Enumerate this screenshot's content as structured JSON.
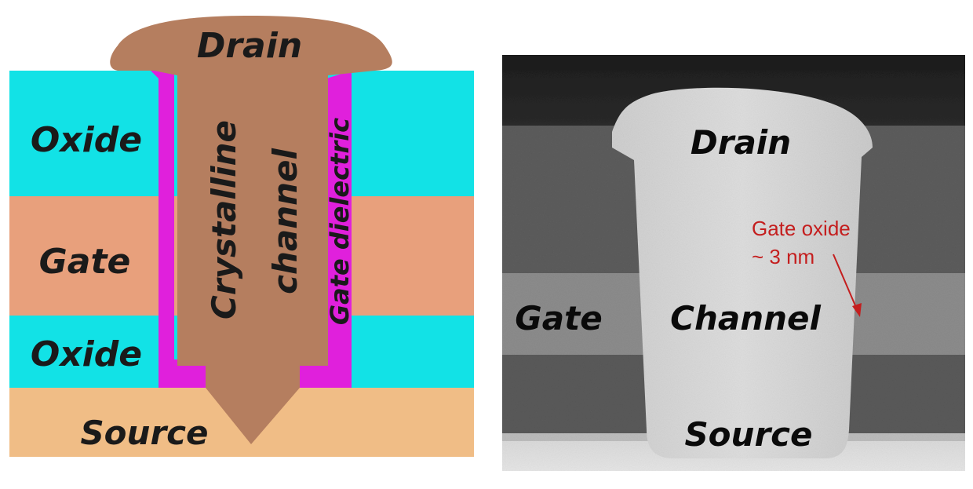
{
  "schematic": {
    "labels": {
      "drain": "Drain",
      "oxide_top": "Oxide",
      "gate": "Gate",
      "oxide_bottom": "Oxide",
      "source": "Source",
      "channel_line1": "Crystalline",
      "channel_line2": "channel",
      "gate_dielectric": "Gate dielectric"
    },
    "colors": {
      "oxide": "#12e2e6",
      "gate": "#e8a07c",
      "source": "#f0bd86",
      "channel": "#b57e5f",
      "dielectric": "#e020dc"
    }
  },
  "micrograph": {
    "labels": {
      "drain": "Drain",
      "gate": "Gate",
      "channel": "Channel",
      "source": "Source"
    },
    "annotation": {
      "line1": "Gate oxide",
      "line2": "~ 3 nm",
      "color": "#c41e1e"
    }
  }
}
